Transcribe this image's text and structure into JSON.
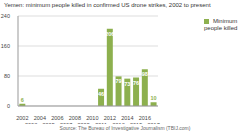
{
  "chart_data": {
    "type": "bar",
    "title": "Yemen: minimum people killed in confirmed US drone strikes, 2002 to present",
    "source": "Source: The Bureau of Investigative Journalism (TBIJ.com)",
    "categories": [
      "2002",
      "2003",
      "2004",
      "2005",
      "2006",
      "2007",
      "2008",
      "2009",
      "2010",
      "2011",
      "2012",
      "2013",
      "2014",
      "2015",
      "2016",
      "2017"
    ],
    "series": [
      {
        "name": "Minimum people killed",
        "color": "#8db04e",
        "values": [
          6,
          0,
          0,
          0,
          0,
          0,
          0,
          0,
          0,
          46,
          206,
          79,
          73,
          76,
          98,
          10
        ]
      }
    ],
    "ylim": [
      0,
      240
    ],
    "yticks": [
      0,
      80,
      160,
      240
    ],
    "grid": true,
    "data_labels": true,
    "legend": "right"
  }
}
